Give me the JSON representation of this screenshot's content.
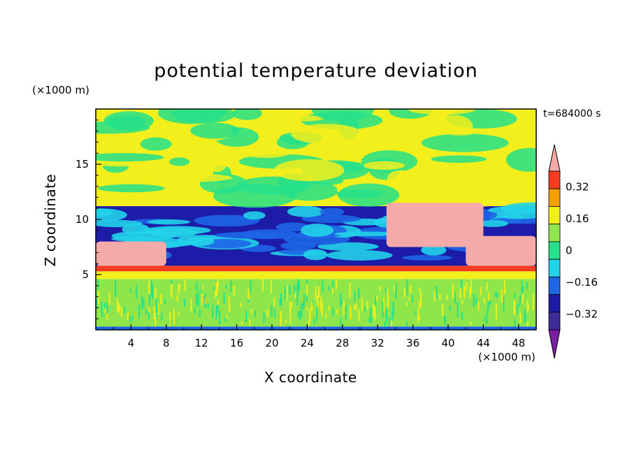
{
  "chart_data": {
    "type": "heatmap",
    "title": "potential temperature deviation",
    "xlabel": "X coordinate",
    "ylabel": "Z coordinate",
    "x_unit": "(×1000 m)",
    "y_unit": "(×1000 m)",
    "time_label": "t=684000 s",
    "xlim": [
      0,
      50
    ],
    "ylim": [
      0,
      20
    ],
    "x_ticks": [
      4,
      8,
      12,
      16,
      20,
      24,
      28,
      32,
      36,
      40,
      44,
      48
    ],
    "y_ticks": [
      5,
      10,
      15
    ],
    "colorbar": {
      "levels": [
        -0.4,
        -0.32,
        -0.24,
        -0.16,
        -0.08,
        0,
        0.08,
        0.16,
        0.24,
        0.32,
        0.4
      ],
      "tick_labels": [
        "0.32",
        "0.16",
        "0",
        "−0.16",
        "−0.32"
      ],
      "tick_values": [
        0.32,
        0.16,
        0,
        -0.16,
        -0.32
      ],
      "colors": [
        "#7b1fa2",
        "#3f2a9a",
        "#1c1ca8",
        "#1e66e6",
        "#22d3e8",
        "#26e08a",
        "#8ee64a",
        "#f2ef1c",
        "#f5a000",
        "#f53c1e",
        "#f4aaa8"
      ]
    },
    "layers": [
      {
        "z_range": [
          0,
          0.3
        ],
        "value": -0.2,
        "description": "thin band near ground"
      },
      {
        "z_range": [
          0.3,
          4.6
        ],
        "value": 0.04,
        "pattern": "turbulent"
      },
      {
        "z_range": [
          4.6,
          5.3
        ],
        "value": 0.12
      },
      {
        "z_range": [
          5.3,
          5.8
        ],
        "value": 0.3
      },
      {
        "z_range": [
          5.8,
          11.2
        ],
        "value": -0.3
      },
      {
        "z_range": [
          11.2,
          20
        ],
        "value": 0.08
      }
    ],
    "regions": [
      {
        "x_range": [
          0,
          8
        ],
        "z_range": [
          5.8,
          8.0
        ],
        "value": 0.45
      },
      {
        "x_range": [
          33,
          44
        ],
        "z_range": [
          7.5,
          11.5
        ],
        "value": 0.45
      },
      {
        "x_range": [
          42,
          50
        ],
        "z_range": [
          5.8,
          8.5
        ],
        "value": 0.45
      }
    ]
  }
}
